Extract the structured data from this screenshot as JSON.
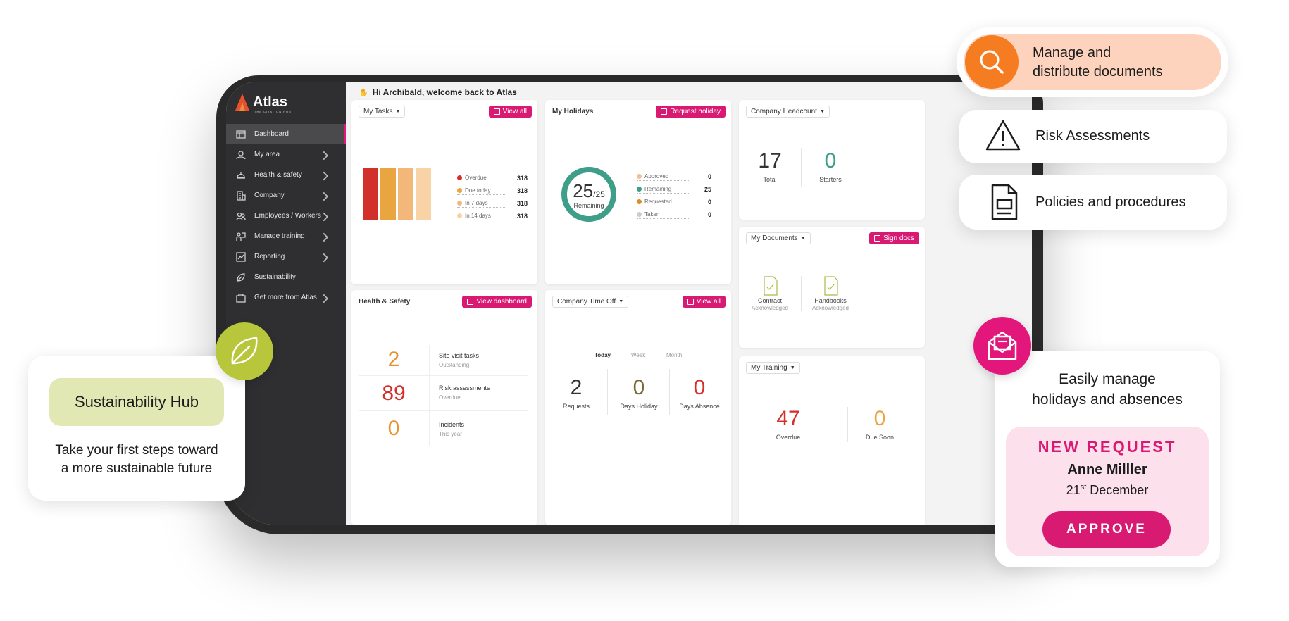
{
  "app": {
    "welcome": "Hi Archibald, welcome back to Atlas",
    "logo_text": "Atlas",
    "logo_sub": "THE CITATION HUB"
  },
  "sidebar": {
    "items": [
      {
        "label": "Dashboard",
        "icon": "dashboard-icon",
        "active": true
      },
      {
        "label": "My area",
        "icon": "user-icon"
      },
      {
        "label": "Health & safety",
        "icon": "helmet-icon"
      },
      {
        "label": "Company",
        "icon": "building-icon"
      },
      {
        "label": "Employees / Workers",
        "icon": "people-icon"
      },
      {
        "label": "Manage training",
        "icon": "training-icon"
      },
      {
        "label": "Reporting",
        "icon": "chart-icon"
      },
      {
        "label": "Sustainability",
        "icon": "leaf-icon"
      },
      {
        "label": "Get more from Atlas",
        "icon": "bag-icon"
      }
    ]
  },
  "my_tasks": {
    "title": "My Tasks",
    "button": "View all",
    "legend": [
      {
        "label": "Overdue",
        "value": "318",
        "color": "#d2302b"
      },
      {
        "label": "Due today",
        "value": "318",
        "color": "#e8a540"
      },
      {
        "label": "In 7 days",
        "value": "318",
        "color": "#f2b779"
      },
      {
        "label": "In 14 days",
        "value": "318",
        "color": "#f7d3a5"
      }
    ]
  },
  "my_holidays": {
    "title": "My Holidays",
    "button": "Request holiday",
    "remaining_num": "25",
    "remaining_total": "/25",
    "remaining_label": "Remaining",
    "legend": [
      {
        "label": "Approved",
        "value": "0",
        "color": "#f2c28e"
      },
      {
        "label": "Remaining",
        "value": "25",
        "color": "#3f9e8a"
      },
      {
        "label": "Requested",
        "value": "0",
        "color": "#e08a2a"
      },
      {
        "label": "Taken",
        "value": "0",
        "color": "#cccccc"
      }
    ]
  },
  "headcount": {
    "title": "Company Headcount",
    "total": "17",
    "total_label": "Total",
    "starters": "0",
    "starters_label": "Starters"
  },
  "documents": {
    "title": "My Documents",
    "button": "Sign docs",
    "contract": "Contract",
    "contract_sub": "Acknowledged",
    "handbooks": "Handbooks",
    "handbooks_sub": "Acknowledged"
  },
  "health_safety": {
    "title": "Health & Safety",
    "button": "View dashboard",
    "rows": [
      {
        "value": "2",
        "label": "Site visit tasks",
        "sub": "Outstanding",
        "color": "#e8922e"
      },
      {
        "value": "89",
        "label": "Risk assessments",
        "sub": "Overdue",
        "color": "#d2302b"
      },
      {
        "value": "0",
        "label": "Incidents",
        "sub": "This year",
        "color": "#e8922e"
      }
    ]
  },
  "time_off": {
    "title": "Company Time Off",
    "button": "View all",
    "tabs": [
      "Today",
      "Week",
      "Month"
    ],
    "stats": [
      {
        "value": "2",
        "label": "Requests",
        "color": "#333333"
      },
      {
        "value": "0",
        "label": "Days Holiday",
        "color": "#7a6a3a"
      },
      {
        "value": "0",
        "label": "Days Absence",
        "color": "#d2302b"
      }
    ]
  },
  "training": {
    "title": "My Training",
    "overdue": "47",
    "overdue_label": "Overdue",
    "due_soon": "0",
    "due_soon_label": "Due Soon"
  },
  "overlays": {
    "manage_docs": "Manage and distribute documents",
    "manage_docs_l1": "Manage and",
    "manage_docs_l2": "distribute documents",
    "risk": "Risk Assessments",
    "policies": "Policies and procedures",
    "sustain_badge": "Sustainability Hub",
    "sustain_l1": "Take your first steps toward",
    "sustain_l2": "a more sustainable future",
    "holiday_l1": "Easily manage",
    "holiday_l2": "holidays and absences",
    "new_request": "NEW REQUEST",
    "request_name": "Anne Milller",
    "request_date_day": "21",
    "request_date_sup": "st",
    "request_date_month": "December",
    "approve": "APPROVE"
  },
  "colors": {
    "accent": "#d91a72",
    "sidebar_bg": "#2f2f31",
    "teal": "#3f9e8a",
    "orange": "#f57c20",
    "peach": "#fdd3bd",
    "lime": "#b7c63a"
  }
}
